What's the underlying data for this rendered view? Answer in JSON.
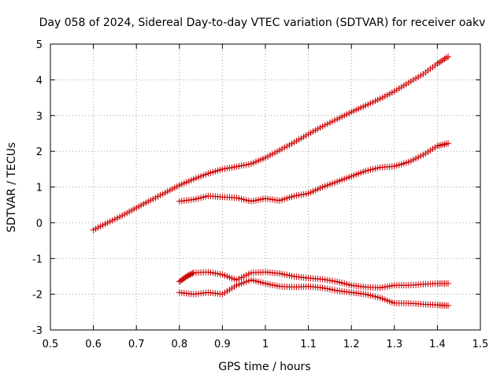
{
  "chart_data": {
    "type": "scatter",
    "title": "Day 058 of 2024, Sidereal Day-to-day VTEC variation (SDTVAR) for receiver oakv",
    "xlabel": "GPS time / hours",
    "ylabel": "SDTVAR / TECUs",
    "xlim": [
      0.5,
      1.5
    ],
    "ylim": [
      -3,
      5
    ],
    "xticks": [
      "0.5",
      "0.6",
      "0.7",
      "0.8",
      "0.9",
      "1",
      "1.1",
      "1.2",
      "1.3",
      "1.4",
      "1.5"
    ],
    "yticks": [
      "5",
      "4",
      "3",
      "2",
      "1",
      "0",
      "-1",
      "-2",
      "-3"
    ],
    "grid": true,
    "marker": "plus",
    "marker_color": "#cc0000",
    "series": [
      {
        "x": [
          0.6,
          0.633,
          0.667,
          0.7,
          0.733,
          0.767,
          0.8,
          0.833,
          0.867,
          0.9,
          0.933,
          0.967,
          1.0,
          1.033,
          1.067,
          1.1,
          1.133,
          1.167,
          1.2,
          1.233,
          1.267,
          1.3,
          1.333,
          1.367,
          1.4,
          1.425
        ],
        "y": [
          -0.2,
          0.0,
          0.2,
          0.42,
          0.63,
          0.84,
          1.05,
          1.22,
          1.38,
          1.5,
          1.57,
          1.65,
          1.82,
          2.03,
          2.25,
          2.48,
          2.7,
          2.9,
          3.1,
          3.28,
          3.47,
          3.68,
          3.92,
          4.16,
          4.45,
          4.65
        ]
      },
      {
        "x": [
          0.8,
          0.833,
          0.867,
          0.9,
          0.933,
          0.967,
          1.0,
          1.033,
          1.067,
          1.1,
          1.133,
          1.167,
          1.2,
          1.233,
          1.267,
          1.3,
          1.333,
          1.367,
          1.4,
          1.425
        ],
        "y": [
          0.6,
          0.65,
          0.75,
          0.72,
          0.7,
          0.6,
          0.68,
          0.62,
          0.75,
          0.82,
          1.0,
          1.15,
          1.3,
          1.45,
          1.55,
          1.58,
          1.7,
          1.9,
          2.15,
          2.22
        ]
      },
      {
        "x": [
          0.8,
          0.817,
          0.833,
          0.867,
          0.9,
          0.933,
          0.967,
          1.0,
          1.033,
          1.067,
          1.1,
          1.133,
          1.167,
          1.2,
          1.233,
          1.267,
          1.3,
          1.333,
          1.367,
          1.4,
          1.425
        ],
        "y": [
          -1.65,
          -1.5,
          -1.4,
          -1.38,
          -1.45,
          -1.6,
          -1.4,
          -1.38,
          -1.42,
          -1.5,
          -1.55,
          -1.58,
          -1.65,
          -1.75,
          -1.8,
          -1.82,
          -1.75,
          -1.75,
          -1.72,
          -1.7,
          -1.7
        ]
      },
      {
        "x": [
          0.8,
          0.833,
          0.867,
          0.9,
          0.933,
          0.967,
          1.0,
          1.033,
          1.067,
          1.1,
          1.133,
          1.167,
          1.2,
          1.233,
          1.267,
          1.3,
          1.333,
          1.367,
          1.4,
          1.425
        ],
        "y": [
          -1.95,
          -2.0,
          -1.95,
          -2.0,
          -1.75,
          -1.6,
          -1.7,
          -1.78,
          -1.8,
          -1.78,
          -1.82,
          -1.9,
          -1.95,
          -2.0,
          -2.1,
          -2.25,
          -2.25,
          -2.28,
          -2.3,
          -2.32
        ]
      }
    ]
  }
}
